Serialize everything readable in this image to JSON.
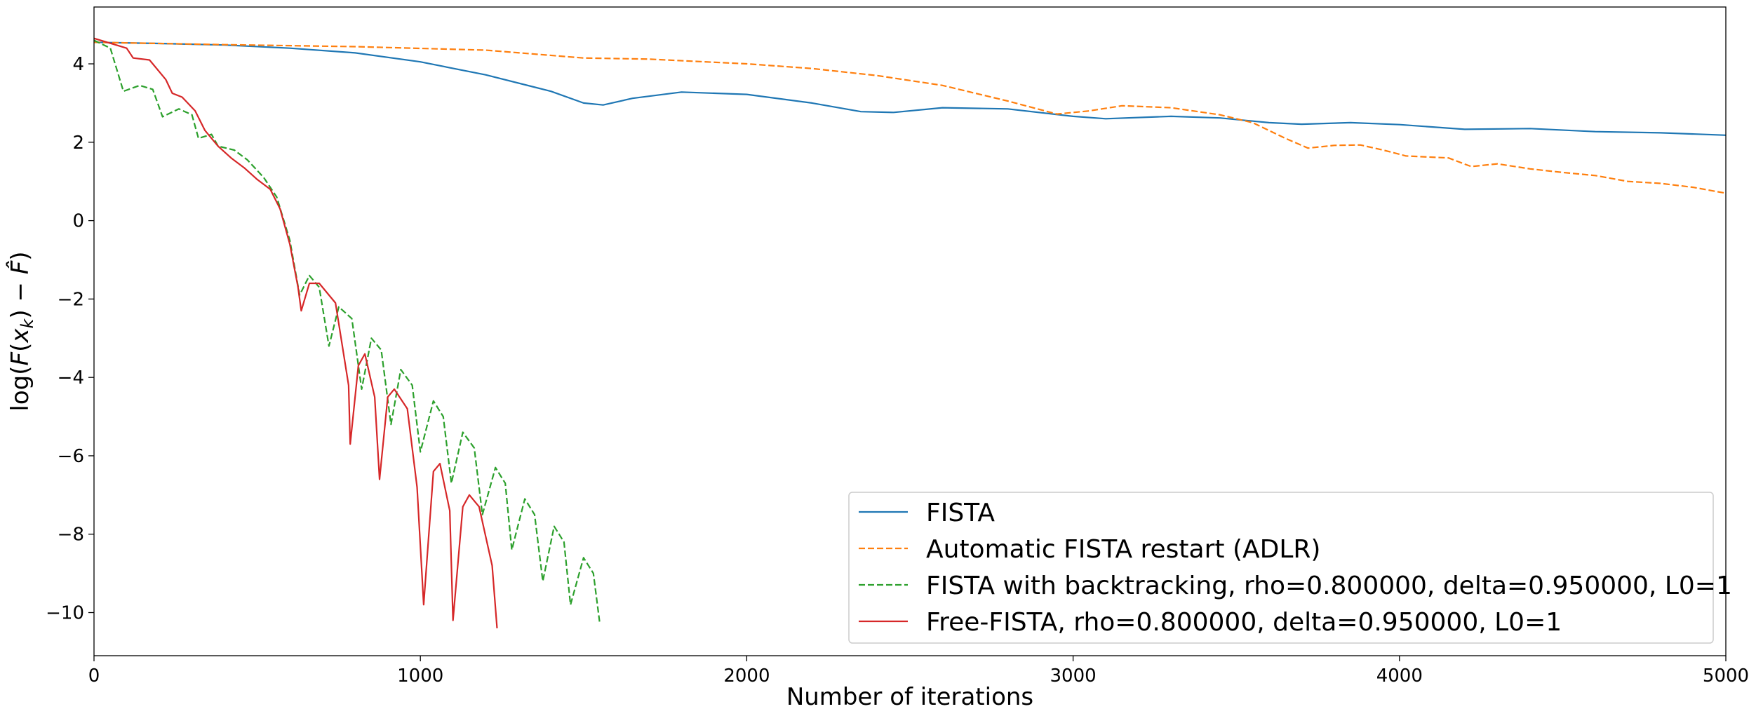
{
  "chart_data": {
    "type": "line",
    "title": "",
    "xlabel": "Number of iterations",
    "ylabel": "log(F(x_k) − F̂)",
    "xlim": [
      0,
      5000
    ],
    "ylim": [
      -11.1,
      5.45
    ],
    "x_ticks": [
      0,
      1000,
      2000,
      3000,
      4000,
      5000
    ],
    "y_ticks": [
      4,
      2,
      0,
      -2,
      -4,
      -6,
      -8,
      -10
    ],
    "grid": false,
    "legend_position": "lower-right",
    "series": [
      {
        "name": "FISTA",
        "color": "#1f77b4",
        "style": "solid",
        "points": [
          [
            0,
            4.55
          ],
          [
            200,
            4.52
          ],
          [
            400,
            4.48
          ],
          [
            600,
            4.4
          ],
          [
            800,
            4.28
          ],
          [
            1000,
            4.05
          ],
          [
            1200,
            3.72
          ],
          [
            1400,
            3.3
          ],
          [
            1500,
            3.0
          ],
          [
            1560,
            2.95
          ],
          [
            1650,
            3.12
          ],
          [
            1800,
            3.28
          ],
          [
            2000,
            3.22
          ],
          [
            2200,
            3.0
          ],
          [
            2350,
            2.78
          ],
          [
            2450,
            2.76
          ],
          [
            2600,
            2.88
          ],
          [
            2800,
            2.85
          ],
          [
            3000,
            2.66
          ],
          [
            3100,
            2.6
          ],
          [
            3300,
            2.66
          ],
          [
            3450,
            2.62
          ],
          [
            3600,
            2.5
          ],
          [
            3700,
            2.46
          ],
          [
            3850,
            2.5
          ],
          [
            4000,
            2.45
          ],
          [
            4200,
            2.33
          ],
          [
            4400,
            2.35
          ],
          [
            4600,
            2.27
          ],
          [
            4800,
            2.24
          ],
          [
            5000,
            2.18
          ]
        ]
      },
      {
        "name": "Automatic FISTA restart (ADLR)",
        "color": "#ff7f0e",
        "style": "dashed",
        "points": [
          [
            0,
            4.55
          ],
          [
            400,
            4.49
          ],
          [
            800,
            4.44
          ],
          [
            1200,
            4.35
          ],
          [
            1500,
            4.15
          ],
          [
            1700,
            4.12
          ],
          [
            2000,
            4.0
          ],
          [
            2200,
            3.88
          ],
          [
            2400,
            3.7
          ],
          [
            2600,
            3.45
          ],
          [
            2800,
            3.05
          ],
          [
            2950,
            2.72
          ],
          [
            3050,
            2.8
          ],
          [
            3150,
            2.93
          ],
          [
            3300,
            2.88
          ],
          [
            3450,
            2.7
          ],
          [
            3550,
            2.5
          ],
          [
            3650,
            2.1
          ],
          [
            3720,
            1.85
          ],
          [
            3800,
            1.92
          ],
          [
            3880,
            1.93
          ],
          [
            3950,
            1.8
          ],
          [
            4020,
            1.65
          ],
          [
            4150,
            1.6
          ],
          [
            4220,
            1.38
          ],
          [
            4300,
            1.45
          ],
          [
            4400,
            1.32
          ],
          [
            4500,
            1.23
          ],
          [
            4600,
            1.15
          ],
          [
            4700,
            1.0
          ],
          [
            4800,
            0.95
          ],
          [
            4900,
            0.85
          ],
          [
            5000,
            0.7
          ]
        ]
      },
      {
        "name": "FISTA with backtracking, rho=0.800000, delta=0.950000, L0=1",
        "color": "#2ca02c",
        "style": "dashed",
        "points": [
          [
            0,
            4.6
          ],
          [
            50,
            4.4
          ],
          [
            90,
            3.3
          ],
          [
            140,
            3.45
          ],
          [
            180,
            3.35
          ],
          [
            210,
            2.65
          ],
          [
            260,
            2.85
          ],
          [
            300,
            2.7
          ],
          [
            320,
            2.1
          ],
          [
            360,
            2.2
          ],
          [
            380,
            1.9
          ],
          [
            430,
            1.8
          ],
          [
            470,
            1.55
          ],
          [
            520,
            1.1
          ],
          [
            560,
            0.6
          ],
          [
            600,
            -0.5
          ],
          [
            630,
            -1.9
          ],
          [
            660,
            -1.4
          ],
          [
            690,
            -1.7
          ],
          [
            720,
            -3.2
          ],
          [
            750,
            -2.2
          ],
          [
            790,
            -2.5
          ],
          [
            820,
            -4.3
          ],
          [
            850,
            -3.0
          ],
          [
            880,
            -3.3
          ],
          [
            910,
            -5.2
          ],
          [
            940,
            -3.8
          ],
          [
            975,
            -4.2
          ],
          [
            1000,
            -5.9
          ],
          [
            1040,
            -4.6
          ],
          [
            1070,
            -5.0
          ],
          [
            1095,
            -6.7
          ],
          [
            1130,
            -5.4
          ],
          [
            1165,
            -5.8
          ],
          [
            1190,
            -7.5
          ],
          [
            1230,
            -6.3
          ],
          [
            1260,
            -6.7
          ],
          [
            1280,
            -8.4
          ],
          [
            1320,
            -7.1
          ],
          [
            1350,
            -7.5
          ],
          [
            1375,
            -9.2
          ],
          [
            1410,
            -7.8
          ],
          [
            1440,
            -8.2
          ],
          [
            1460,
            -9.8
          ],
          [
            1500,
            -8.6
          ],
          [
            1530,
            -9.0
          ],
          [
            1550,
            -10.3
          ]
        ]
      },
      {
        "name": "Free-FISTA, rho=0.800000, delta=0.950000, L0=1",
        "color": "#d62728",
        "style": "solid",
        "points": [
          [
            0,
            4.65
          ],
          [
            60,
            4.5
          ],
          [
            100,
            4.4
          ],
          [
            120,
            4.15
          ],
          [
            170,
            4.1
          ],
          [
            200,
            3.8
          ],
          [
            220,
            3.6
          ],
          [
            240,
            3.25
          ],
          [
            270,
            3.15
          ],
          [
            310,
            2.8
          ],
          [
            340,
            2.3
          ],
          [
            380,
            1.9
          ],
          [
            420,
            1.6
          ],
          [
            460,
            1.35
          ],
          [
            500,
            1.05
          ],
          [
            540,
            0.8
          ],
          [
            570,
            0.3
          ],
          [
            600,
            -0.6
          ],
          [
            625,
            -1.7
          ],
          [
            635,
            -2.3
          ],
          [
            660,
            -1.6
          ],
          [
            690,
            -1.6
          ],
          [
            740,
            -2.1
          ],
          [
            780,
            -4.2
          ],
          [
            785,
            -5.7
          ],
          [
            810,
            -3.7
          ],
          [
            830,
            -3.4
          ],
          [
            860,
            -4.5
          ],
          [
            875,
            -6.6
          ],
          [
            900,
            -4.5
          ],
          [
            920,
            -4.3
          ],
          [
            960,
            -4.8
          ],
          [
            990,
            -6.8
          ],
          [
            1010,
            -9.8
          ],
          [
            1040,
            -6.4
          ],
          [
            1060,
            -6.2
          ],
          [
            1090,
            -7.4
          ],
          [
            1100,
            -10.2
          ],
          [
            1130,
            -7.3
          ],
          [
            1150,
            -7.0
          ],
          [
            1180,
            -7.3
          ],
          [
            1220,
            -8.8
          ],
          [
            1235,
            -10.4
          ]
        ]
      }
    ]
  }
}
